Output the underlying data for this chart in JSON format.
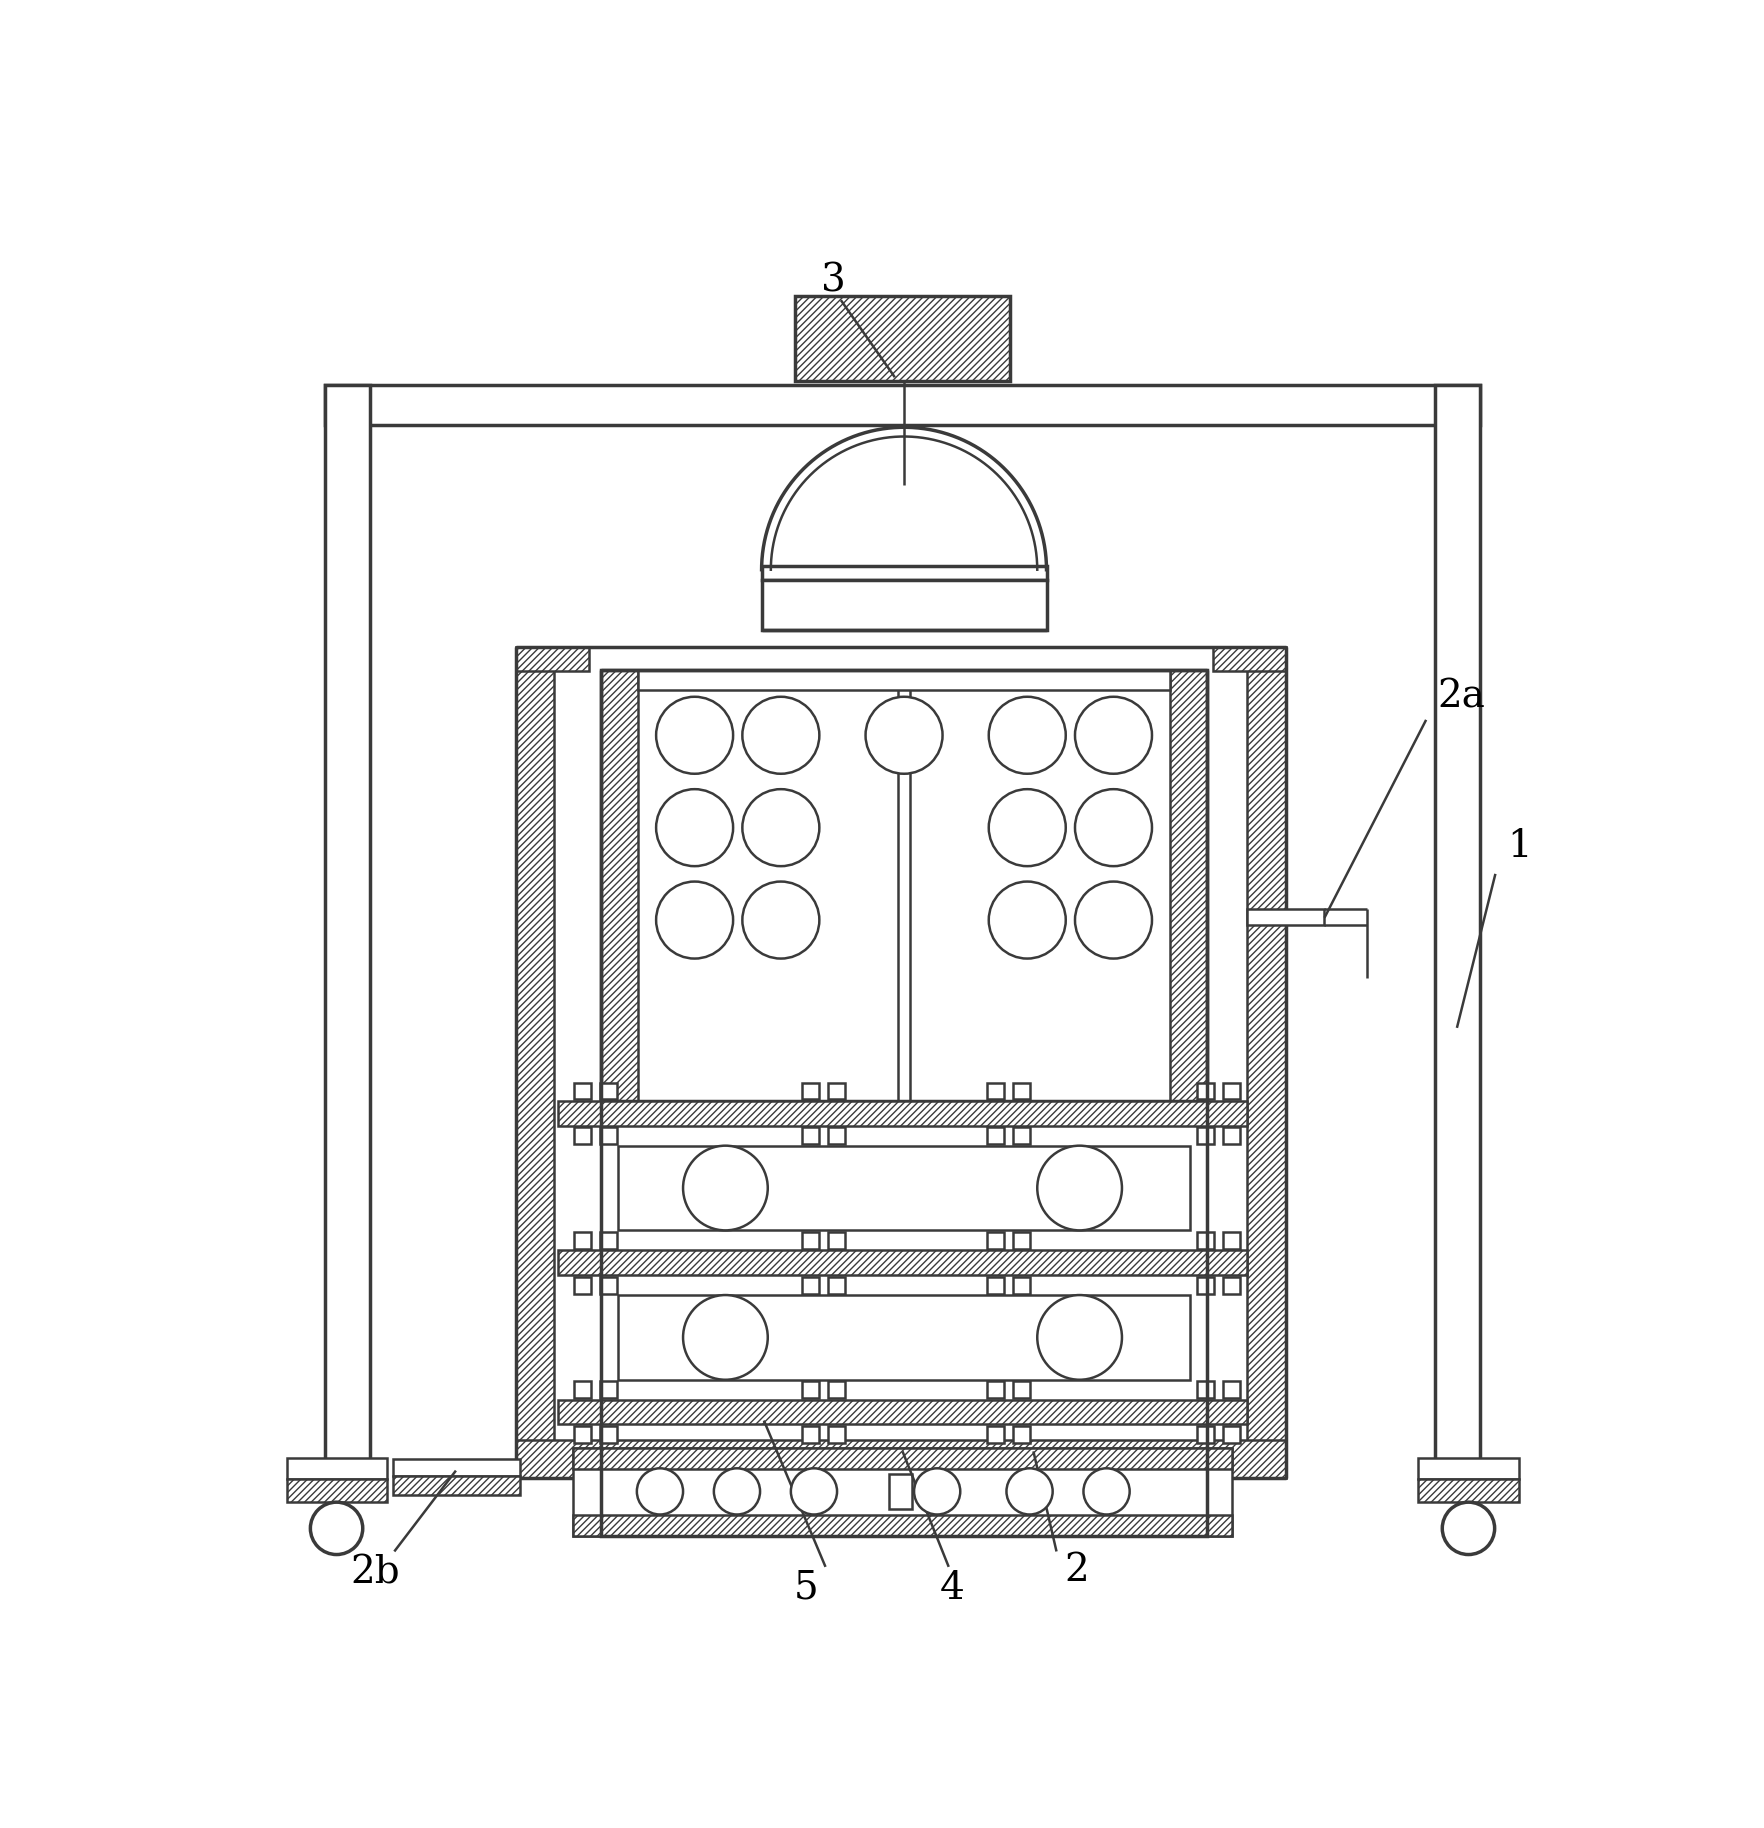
{
  "bg_color": "#ffffff",
  "line_color": "#3a3a3a",
  "lw": 1.8,
  "lw2": 2.5,
  "lw3": 3.0,
  "figsize": [
    17.64,
    18.28
  ],
  "dpi": 100,
  "font_size": 28
}
